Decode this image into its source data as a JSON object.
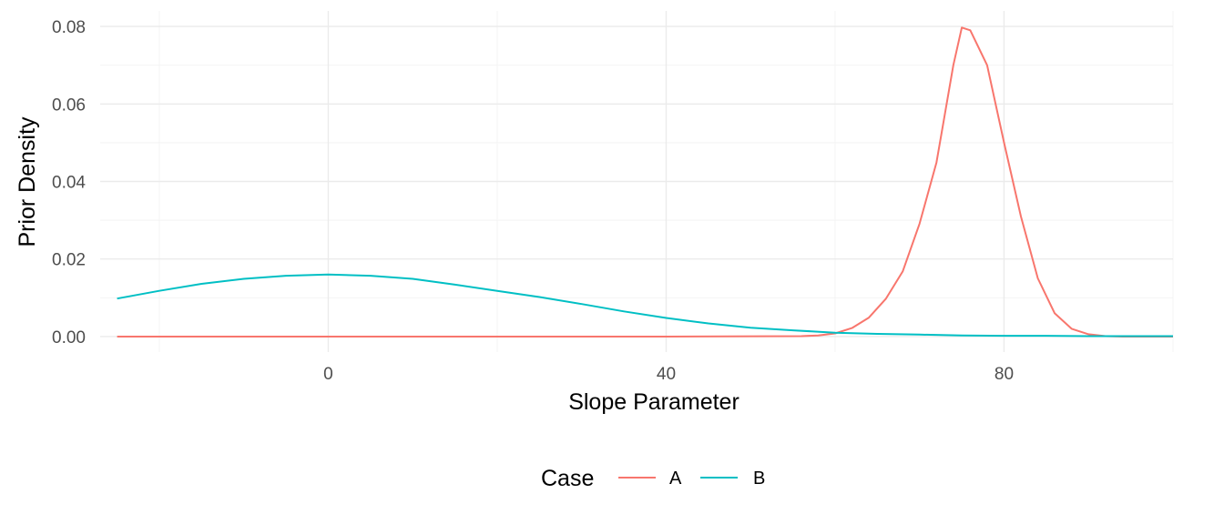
{
  "chart_data": {
    "type": "line",
    "xlabel": "Slope Parameter",
    "ylabel": "Prior Density",
    "xlim": [
      -27,
      100
    ],
    "ylim": [
      -0.004,
      0.084
    ],
    "x_ticks": [
      0,
      40,
      80
    ],
    "x_tick_labels": [
      "0",
      "40",
      "80"
    ],
    "y_ticks": [
      0,
      0.02,
      0.04,
      0.06,
      0.08
    ],
    "y_tick_labels": [
      "0.00",
      "0.02",
      "0.04",
      "0.06",
      "0.08"
    ],
    "grid": true,
    "legend": {
      "title": "Case",
      "position": "bottom"
    },
    "series": [
      {
        "name": "A",
        "color": "#F8766D",
        "x": [
          -25,
          0,
          40,
          56,
          58,
          60,
          62,
          64,
          66,
          68,
          70,
          72,
          74,
          75,
          76,
          78,
          80,
          82,
          84,
          86,
          88,
          90,
          92,
          94,
          100
        ],
        "y": [
          0,
          0,
          0,
          0.0001,
          0.0003,
          0.0008,
          0.0022,
          0.0049,
          0.0097,
          0.0168,
          0.0291,
          0.0449,
          0.07,
          0.0797,
          0.079,
          0.07,
          0.05,
          0.031,
          0.015,
          0.006,
          0.002,
          0.0006,
          0.0001,
          0,
          0
        ]
      },
      {
        "name": "B",
        "color": "#00BFC4",
        "x": [
          -25,
          -20,
          -15,
          -10,
          -5,
          0,
          5,
          10,
          15,
          20,
          25,
          30,
          35,
          40,
          45,
          50,
          55,
          60,
          65,
          70,
          75,
          80,
          85,
          90,
          95,
          100
        ],
        "y": [
          0.0098,
          0.0118,
          0.0136,
          0.0149,
          0.0157,
          0.016,
          0.0157,
          0.0149,
          0.0134,
          0.0118,
          0.0102,
          0.0084,
          0.0065,
          0.0048,
          0.0034,
          0.0023,
          0.0016,
          0.001,
          0.0007,
          0.0005,
          0.0003,
          0.0002,
          0.0002,
          0.0001,
          0.0001,
          0.0001
        ]
      }
    ]
  }
}
